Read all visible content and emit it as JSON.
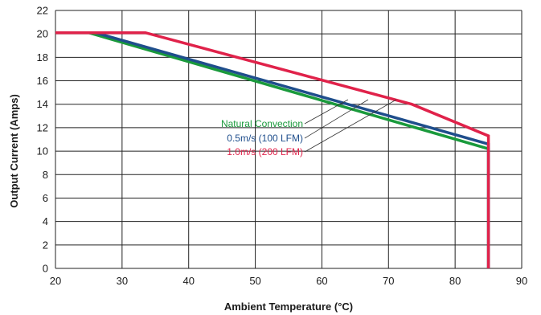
{
  "chart_data": {
    "type": "line",
    "xlabel": "Ambient Temperature (°C)",
    "ylabel": "Output Current (Amps)",
    "xlim": [
      20,
      90
    ],
    "ylim": [
      0,
      22
    ],
    "x_ticks": [
      20,
      30,
      40,
      50,
      60,
      70,
      80,
      90
    ],
    "y_ticks": [
      0,
      2,
      4,
      6,
      8,
      10,
      12,
      14,
      16,
      18,
      20,
      22
    ],
    "grid": true,
    "series": [
      {
        "name": "Natural  Convection",
        "color": "#1a9a3c",
        "points": [
          [
            20,
            20.1
          ],
          [
            25,
            20.1
          ],
          [
            85,
            10.2
          ],
          [
            85,
            0
          ]
        ]
      },
      {
        "name": "0.5m/s (100 LFM)",
        "color": "#1f4e8c",
        "points": [
          [
            20,
            20.1
          ],
          [
            26,
            20.1
          ],
          [
            85,
            10.6
          ],
          [
            85,
            0
          ]
        ]
      },
      {
        "name": "1.0m/s (200 LFM)",
        "color": "#e0224a",
        "points": [
          [
            20,
            20.1
          ],
          [
            33.5,
            20.1
          ],
          [
            73.5,
            14.0
          ],
          [
            85,
            11.3
          ],
          [
            85,
            0
          ]
        ]
      }
    ]
  }
}
